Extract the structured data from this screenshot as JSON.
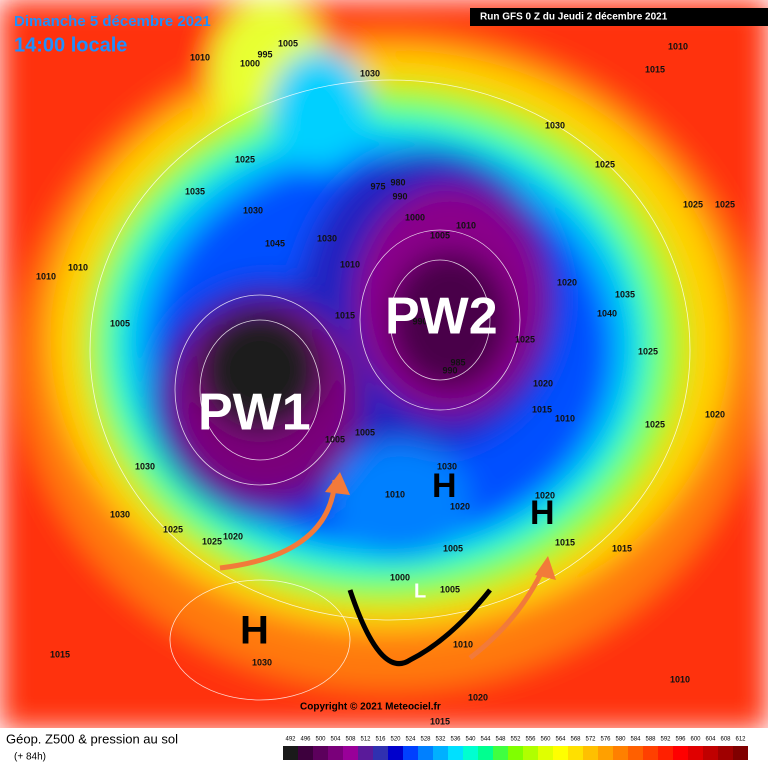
{
  "header": {
    "date": "Dimanche 5 décembre 2021",
    "time": "14:00 locale",
    "run": "Run GFS 0 Z du Jeudi 2 décembre 2021"
  },
  "annotations": {
    "pw1": "PW1",
    "pw2": "PW2",
    "highs": [
      "H",
      "H",
      "H"
    ],
    "low": "L"
  },
  "isobar_labels": [
    "1005",
    "995",
    "1000",
    "1010",
    "1030",
    "1010",
    "1015",
    "1025",
    "1035",
    "1030",
    "1045",
    "1030",
    "1010",
    "975",
    "980",
    "990",
    "1000",
    "1005",
    "1010",
    "1025",
    "1025",
    "1025",
    "1020",
    "1035",
    "1040",
    "1025",
    "1010",
    "1010",
    "1005",
    "1015",
    "990",
    "985",
    "990",
    "1025",
    "1020",
    "1015",
    "1010",
    "1020",
    "1025",
    "1030",
    "1030",
    "1025",
    "1025",
    "1020",
    "1005",
    "1005",
    "1010",
    "1030",
    "1020",
    "1020",
    "1015",
    "1015",
    "1005",
    "1005",
    "1000",
    "1010",
    "1015",
    "1030",
    "1020",
    "1015",
    "1010",
    "1030"
  ],
  "footer": {
    "copyright": "Copyright © 2021 Meteociel.fr",
    "title": "Géop. Z500 & pression au sol",
    "lead": "(+ 84h)"
  },
  "legend": {
    "scale": [
      492,
      496,
      500,
      504,
      508,
      512,
      516,
      520,
      524,
      528,
      532,
      536,
      540,
      544,
      548,
      552,
      556,
      560,
      564,
      568,
      572,
      576,
      580,
      584,
      588,
      592,
      596,
      600,
      604,
      608,
      612
    ],
    "colors": [
      "#1a1a1a",
      "#3d003d",
      "#5c005c",
      "#7a007a",
      "#990099",
      "#5a1a9a",
      "#3030b0",
      "#0000cc",
      "#0040ff",
      "#0080ff",
      "#00b0ff",
      "#00e0ff",
      "#00ffd0",
      "#00ff90",
      "#40ff40",
      "#80ff00",
      "#b0ff00",
      "#e0ff00",
      "#ffff00",
      "#ffe000",
      "#ffc000",
      "#ffa000",
      "#ff8000",
      "#ff6000",
      "#ff4000",
      "#ff2000",
      "#ff0000",
      "#e00000",
      "#c00000",
      "#a00000",
      "#800000"
    ]
  }
}
